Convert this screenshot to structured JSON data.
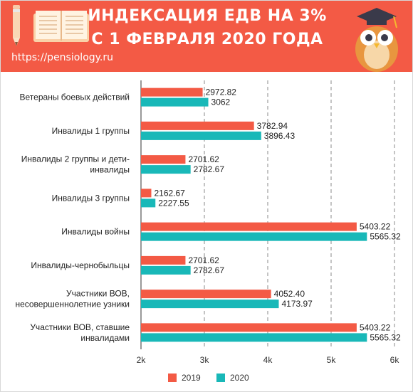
{
  "header": {
    "title_line1": "ИНДЕКСАЦИЯ ЕДВ НА 3%",
    "title_line2": "С 1 ФЕВРАЛЯ 2020 ГОДА",
    "site_url": "https://pensiology.ru",
    "banner_color": "#f35a45",
    "icons": [
      "pencil-icon",
      "open-book-icon",
      "owl-graduate-icon"
    ]
  },
  "chart_data": {
    "type": "bar",
    "orientation": "horizontal",
    "categories": [
      [
        "Ветераны боевых действий"
      ],
      [
        "Инвалиды 1 группы"
      ],
      [
        "Инвалиды 2 группы и дети-",
        "инвалиды"
      ],
      [
        "Инвалиды 3 группы"
      ],
      [
        "Инвалиды войны"
      ],
      [
        "Инвалиды-чернобыльцы"
      ],
      [
        "Участники ВОВ,",
        "несовершеннолетние узники"
      ],
      [
        "Участники ВОВ, ставшие",
        "инвалидами"
      ]
    ],
    "series": [
      {
        "name": "2019",
        "color": "#f35a45",
        "values": [
          2972.82,
          3782.94,
          2701.62,
          2162.67,
          5403.22,
          2701.62,
          4052.4,
          5403.22
        ],
        "labels": [
          "2972.82",
          "3782.94",
          "2701.62",
          "2162.67",
          "5403.22",
          "2701.62",
          "4052.40",
          "5403.22"
        ]
      },
      {
        "name": "2020",
        "color": "#19b8b8",
        "values": [
          3062,
          3896.43,
          2782.67,
          2227.55,
          5565.32,
          2782.67,
          4173.97,
          5565.32
        ],
        "labels": [
          "3062",
          "3896.43",
          "2782.67",
          "2227.55",
          "5565.32",
          "2782.67",
          "4173.97",
          "5565.32"
        ]
      }
    ],
    "xlim": [
      2000,
      6000
    ],
    "ticks": [
      2000,
      3000,
      4000,
      5000,
      6000
    ],
    "tick_labels": [
      "2k",
      "3k",
      "4k",
      "5k",
      "6k"
    ],
    "grid": "dashed vertical",
    "legend": "bottom-center"
  }
}
